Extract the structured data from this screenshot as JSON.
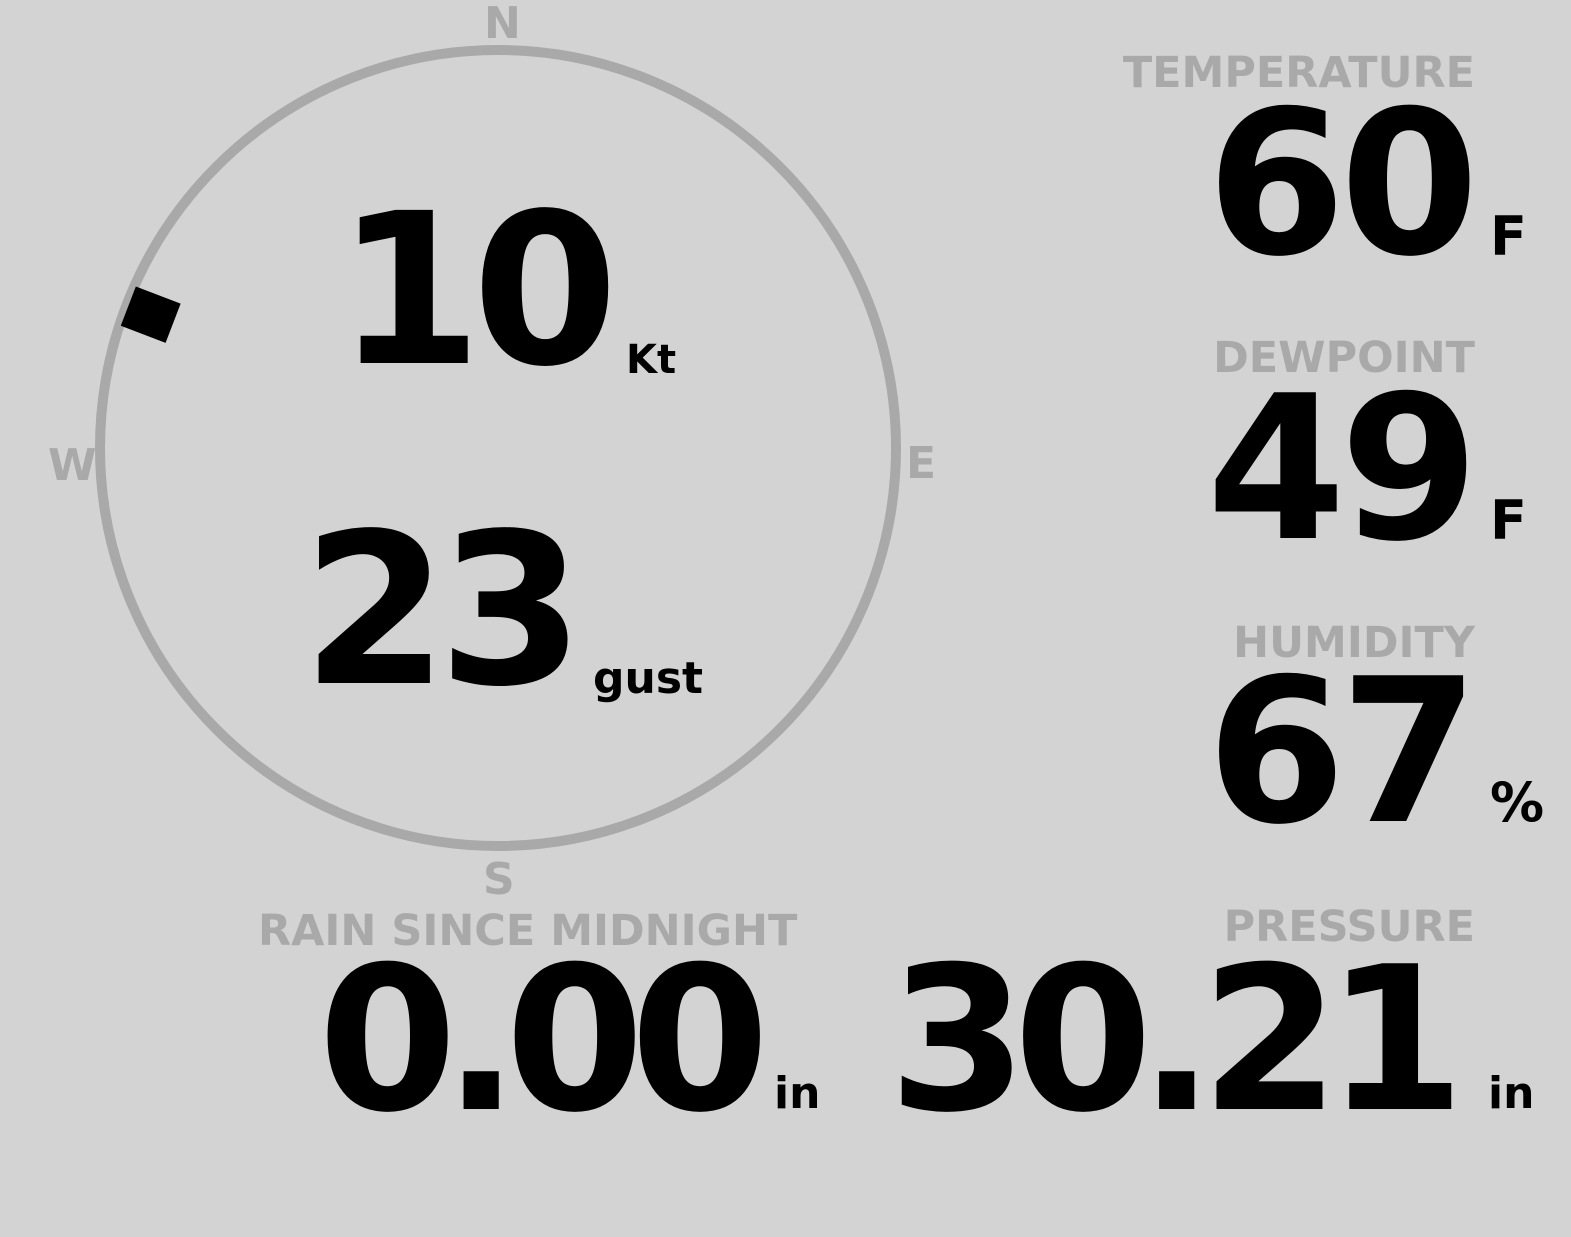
{
  "colors": {
    "background": "#d3d3d3",
    "label": "#a9a9a9",
    "value": "#000000"
  },
  "wind": {
    "compass": {
      "n": "N",
      "e": "E",
      "s": "S",
      "w": "W"
    },
    "direction_degrees": 291,
    "speed": "10",
    "speed_unit": "Kt",
    "gust": "23",
    "gust_unit": "gust"
  },
  "rain": {
    "label": "RAIN SINCE MIDNIGHT",
    "value": "0.00",
    "unit": "in"
  },
  "temperature": {
    "label": "TEMPERATURE",
    "value": "60",
    "unit": "F"
  },
  "dewpoint": {
    "label": "DEWPOINT",
    "value": "49",
    "unit": "F"
  },
  "humidity": {
    "label": "HUMIDITY",
    "value": "67",
    "unit": "%"
  },
  "pressure": {
    "label": "PRESSURE",
    "value": "30.21",
    "unit": "in"
  }
}
